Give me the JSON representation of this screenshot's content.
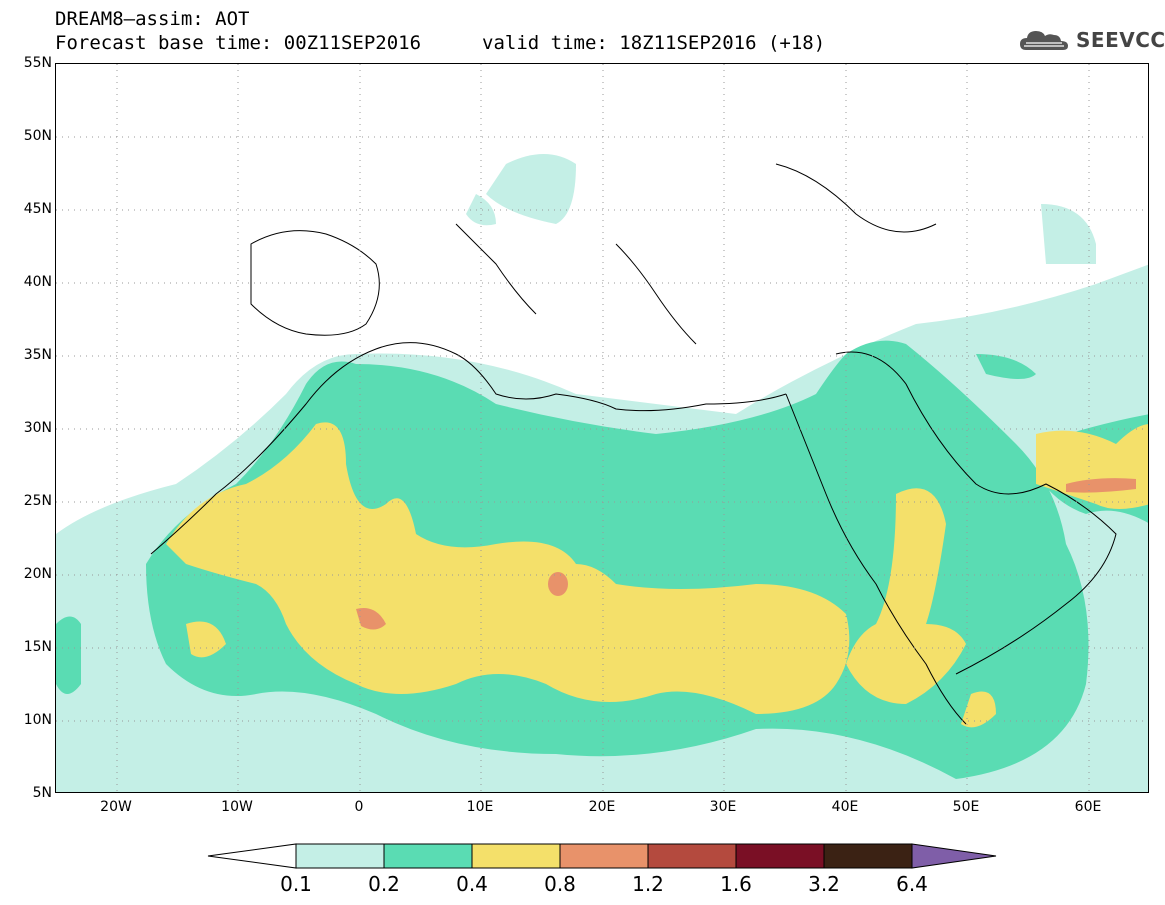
{
  "header": {
    "line1": "DREAM8–assim: AOT",
    "line2": "Forecast base time: 00Z11SEP2016",
    "line3": "valid time: 18Z11SEP2016 (+18)"
  },
  "logo": {
    "text": "SEEVCCC",
    "icon": "cloud-icon"
  },
  "axes": {
    "lat_labels": [
      "55N",
      "50N",
      "45N",
      "40N",
      "35N",
      "30N",
      "25N",
      "20N",
      "15N",
      "10N",
      "5N"
    ],
    "lon_labels": [
      "20W",
      "10W",
      "0",
      "10E",
      "20E",
      "30E",
      "40E",
      "50E",
      "60E"
    ],
    "lat_range": [
      5,
      55
    ],
    "lon_range": [
      -25,
      65
    ]
  },
  "legend": {
    "labels": [
      "0.1",
      "0.2",
      "0.4",
      "0.8",
      "1.2",
      "1.6",
      "3.2",
      "6.4"
    ],
    "colors": [
      "#ffffff",
      "#c4efe6",
      "#5adcb3",
      "#f4e06a",
      "#e8926a",
      "#b44a3e",
      "#7a0f25",
      "#3b2214",
      "#7f5ea8"
    ]
  }
}
